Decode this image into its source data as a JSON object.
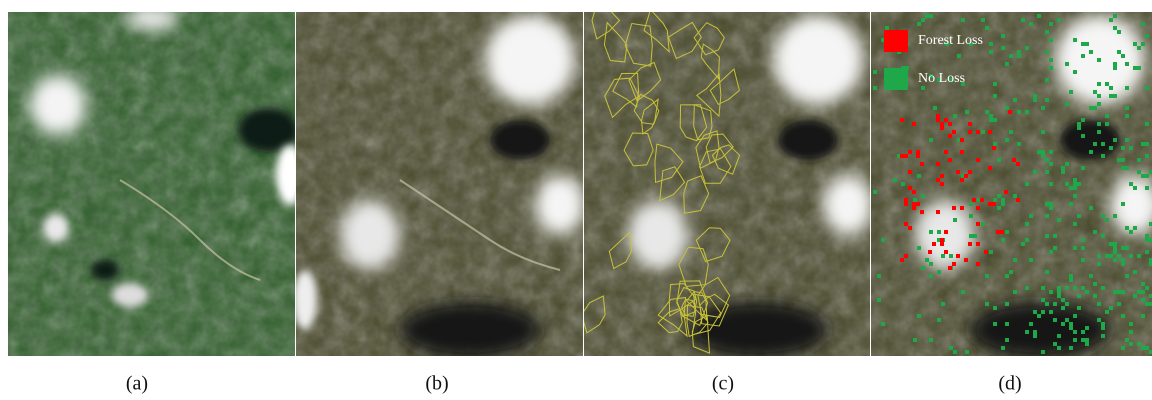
{
  "panels": [
    {
      "label": "(a)"
    },
    {
      "label": "(b)"
    },
    {
      "label": "(c)"
    },
    {
      "label": "(d)"
    }
  ],
  "legend": {
    "items": [
      {
        "label": "Forest Loss",
        "color": "#ff0000"
      },
      {
        "label": "No Loss",
        "color": "#1fa84a"
      }
    ]
  }
}
